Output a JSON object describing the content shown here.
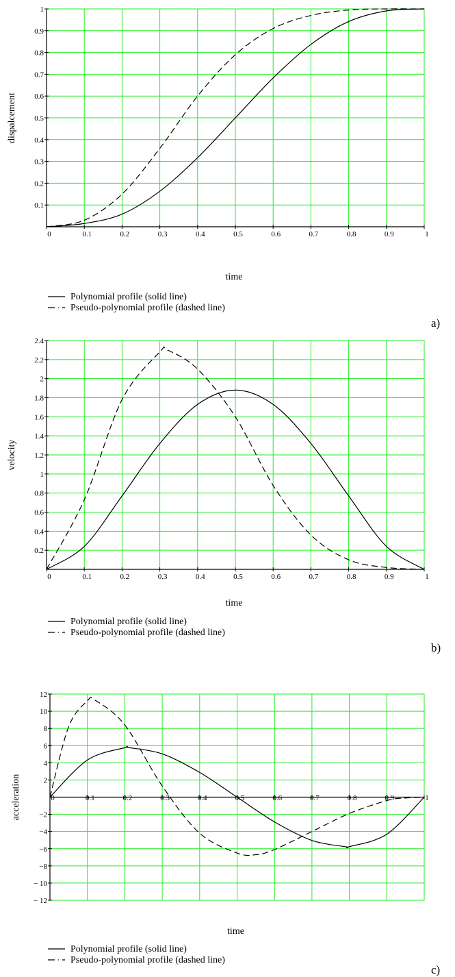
{
  "chart_data": [
    {
      "type": "line",
      "panel_label": "a)",
      "xlabel": "time",
      "ylabel": "dispalcement",
      "xlim": [
        0,
        1
      ],
      "ylim": [
        0,
        1
      ],
      "x_ticks": [
        "0",
        "0.1",
        "0.2",
        "0.3",
        "0.4",
        "0.5",
        "0.6",
        "0.7",
        "0.8",
        "0.9",
        "1"
      ],
      "y_ticks": [
        "0.1",
        "0.2",
        "0.3",
        "0.4",
        "0.5",
        "0.6",
        "0.7",
        "0.8",
        "0.9",
        "1"
      ],
      "grid": true,
      "legend": [
        {
          "label": "Polynomial profile (solid line)",
          "style": "solid"
        },
        {
          "label": "Pseudo-polynomial profile (dashed line)",
          "style": "dashed"
        }
      ],
      "series": [
        {
          "style": "solid",
          "x": [
            0,
            0.1,
            0.2,
            0.3,
            0.4,
            0.5,
            0.6,
            0.7,
            0.8,
            0.9,
            1
          ],
          "y": [
            0,
            0.015,
            0.058,
            0.163,
            0.317,
            0.5,
            0.683,
            0.837,
            0.942,
            0.991,
            1
          ]
        },
        {
          "style": "dashed",
          "x": [
            0,
            0.1,
            0.2,
            0.3,
            0.4,
            0.5,
            0.6,
            0.7,
            0.8,
            0.9,
            1
          ],
          "y": [
            0,
            0.03,
            0.15,
            0.36,
            0.6,
            0.79,
            0.91,
            0.97,
            0.995,
            1,
            1
          ]
        }
      ]
    },
    {
      "type": "line",
      "panel_label": "b)",
      "xlabel": "time",
      "ylabel": "velocity",
      "xlim": [
        0,
        1
      ],
      "ylim": [
        0,
        2.4
      ],
      "x_ticks": [
        "0",
        "0.1",
        "0.2",
        "0.3",
        "0.4",
        "0.5",
        "0.6",
        "0.7",
        "0.8",
        "0.9",
        "1"
      ],
      "y_ticks": [
        "0.2",
        "0.4",
        "0.6",
        "0.8",
        "1",
        "1.2",
        "1.4",
        "1.6",
        "1.8",
        "2",
        "2.2",
        "2.4"
      ],
      "grid": true,
      "legend": [
        {
          "label": "Polynomial profile (solid line)",
          "style": "solid"
        },
        {
          "label": "Pseudo-polynomial profile (dashed line)",
          "style": "dashed"
        }
      ],
      "series": [
        {
          "style": "solid",
          "x": [
            0,
            0.1,
            0.2,
            0.3,
            0.4,
            0.5,
            0.6,
            0.7,
            0.8,
            0.9,
            1
          ],
          "y": [
            0,
            0.24,
            0.77,
            1.32,
            1.73,
            1.88,
            1.73,
            1.32,
            0.77,
            0.24,
            0
          ]
        },
        {
          "style": "dashed",
          "x": [
            0,
            0.1,
            0.2,
            0.3,
            0.32,
            0.4,
            0.5,
            0.6,
            0.7,
            0.8,
            0.9,
            1
          ],
          "y": [
            0,
            0.73,
            1.78,
            2.28,
            2.3,
            2.1,
            1.6,
            0.88,
            0.36,
            0.1,
            0.02,
            0
          ]
        }
      ]
    },
    {
      "type": "line",
      "panel_label": "c)",
      "xlabel": "time",
      "ylabel": "acceleration",
      "xlim": [
        0,
        1
      ],
      "ylim": [
        -12,
        12
      ],
      "x_ticks": [
        "0",
        "0.1",
        "0.2",
        "0.3",
        "0.4",
        "0.5",
        "0.6",
        "0.7",
        "0.8",
        "0.9",
        "1"
      ],
      "y_ticks": [
        "12",
        "10",
        "8",
        "6",
        "4",
        "2",
        "−2",
        "−4",
        "−6",
        "−8",
        "− 10",
        "− 12"
      ],
      "grid": true,
      "legend": [
        {
          "label": "Polynomial profile  (solid line)",
          "style": "solid"
        },
        {
          "label": "Pseudo-polynomial profile  (dashed line)",
          "style": "dashed"
        }
      ],
      "series": [
        {
          "style": "solid",
          "x": [
            0,
            0.1,
            0.2,
            0.21,
            0.3,
            0.4,
            0.5,
            0.6,
            0.7,
            0.79,
            0.8,
            0.9,
            1
          ],
          "y": [
            0,
            4.32,
            5.76,
            5.77,
            5.04,
            2.88,
            0,
            -2.88,
            -5.04,
            -5.77,
            -5.76,
            -4.32,
            0
          ]
        },
        {
          "style": "dashed",
          "x": [
            0,
            0.05,
            0.1,
            0.12,
            0.2,
            0.3,
            0.4,
            0.5,
            0.55,
            0.6,
            0.7,
            0.8,
            0.9,
            0.95,
            1
          ],
          "y": [
            0,
            8.2,
            11.2,
            11.3,
            8.4,
            1.3,
            -4.2,
            -6.5,
            -6.7,
            -6.1,
            -4.0,
            -1.9,
            -0.4,
            -0.1,
            0
          ]
        }
      ]
    }
  ]
}
